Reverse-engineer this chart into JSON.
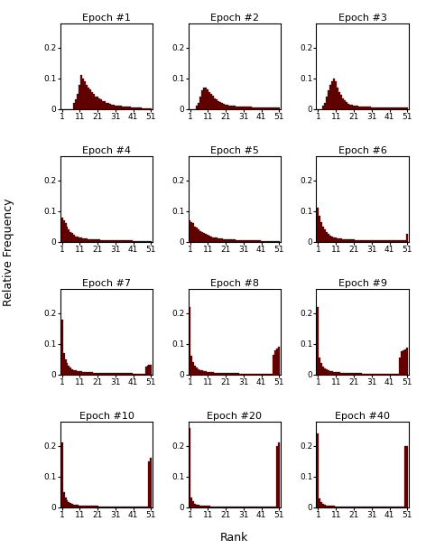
{
  "epochs": [
    "Epoch #1",
    "Epoch #2",
    "Epoch #3",
    "Epoch #4",
    "Epoch #5",
    "Epoch #6",
    "Epoch #7",
    "Epoch #8",
    "Epoch #9",
    "Epoch #10",
    "Epoch #20",
    "Epoch #40"
  ],
  "n_bins": 51,
  "bar_color": "#6B0000",
  "bar_edgecolor": "#3A0000",
  "ylabel": "Relative Frequency",
  "xlabel": "Rank",
  "xtick_vals": [
    1,
    11,
    21,
    31,
    41,
    51
  ],
  "ytick_vals": [
    0,
    0.1,
    0.2
  ],
  "ylim": [
    0,
    0.28
  ],
  "xlim": [
    0,
    52
  ],
  "title_fontsize": 8,
  "tick_fontsize": 6.5,
  "label_fontsize": 9,
  "figsize": [
    4.72,
    6.08
  ],
  "dpi": 100,
  "hist_data": {
    "Epoch #1": [
      0,
      0,
      0,
      0,
      0,
      0,
      0,
      0.02,
      0.03,
      0.05,
      0.08,
      0.11,
      0.1,
      0.09,
      0.08,
      0.07,
      0.065,
      0.055,
      0.05,
      0.04,
      0.04,
      0.035,
      0.03,
      0.025,
      0.025,
      0.02,
      0.02,
      0.018,
      0.015,
      0.013,
      0.012,
      0.01,
      0.01,
      0.01,
      0.009,
      0.008,
      0.008,
      0.007,
      0.007,
      0.006,
      0.006,
      0.005,
      0.005,
      0.004,
      0.004,
      0.003,
      0.003,
      0.002,
      0.001,
      0.001,
      0.001
    ],
    "Epoch #2": [
      0,
      0,
      0,
      0,
      0.01,
      0.02,
      0.04,
      0.06,
      0.07,
      0.07,
      0.065,
      0.055,
      0.048,
      0.042,
      0.035,
      0.03,
      0.025,
      0.022,
      0.02,
      0.017,
      0.015,
      0.013,
      0.012,
      0.011,
      0.01,
      0.01,
      0.009,
      0.009,
      0.008,
      0.008,
      0.008,
      0.007,
      0.007,
      0.007,
      0.007,
      0.006,
      0.006,
      0.006,
      0.006,
      0.005,
      0.005,
      0.005,
      0.005,
      0.005,
      0.005,
      0.005,
      0.005,
      0.005,
      0.005,
      0.005,
      0.005
    ],
    "Epoch #3": [
      0,
      0,
      0,
      0.01,
      0.02,
      0.04,
      0.06,
      0.08,
      0.09,
      0.1,
      0.09,
      0.07,
      0.055,
      0.045,
      0.035,
      0.028,
      0.022,
      0.018,
      0.015,
      0.013,
      0.012,
      0.011,
      0.01,
      0.009,
      0.009,
      0.008,
      0.008,
      0.007,
      0.007,
      0.007,
      0.006,
      0.006,
      0.006,
      0.006,
      0.005,
      0.005,
      0.005,
      0.005,
      0.005,
      0.005,
      0.005,
      0.005,
      0.005,
      0.005,
      0.005,
      0.005,
      0.005,
      0.005,
      0.005,
      0.005,
      0.005
    ],
    "Epoch #4": [
      0.08,
      0.07,
      0.06,
      0.05,
      0.04,
      0.032,
      0.027,
      0.022,
      0.018,
      0.016,
      0.014,
      0.013,
      0.012,
      0.011,
      0.01,
      0.009,
      0.009,
      0.008,
      0.008,
      0.007,
      0.007,
      0.007,
      0.006,
      0.006,
      0.006,
      0.006,
      0.005,
      0.005,
      0.005,
      0.005,
      0.005,
      0.005,
      0.004,
      0.004,
      0.004,
      0.004,
      0.004,
      0.004,
      0.004,
      0.004,
      0.003,
      0.003,
      0.003,
      0.003,
      0.003,
      0.003,
      0.003,
      0.003,
      0.003,
      0.003,
      0.003
    ],
    "Epoch #5": [
      0.07,
      0.065,
      0.06,
      0.05,
      0.045,
      0.04,
      0.035,
      0.03,
      0.027,
      0.025,
      0.022,
      0.02,
      0.018,
      0.015,
      0.014,
      0.013,
      0.012,
      0.011,
      0.01,
      0.009,
      0.009,
      0.008,
      0.008,
      0.007,
      0.007,
      0.007,
      0.006,
      0.006,
      0.006,
      0.005,
      0.005,
      0.005,
      0.005,
      0.005,
      0.004,
      0.004,
      0.004,
      0.004,
      0.004,
      0.004,
      0.003,
      0.003,
      0.003,
      0.003,
      0.003,
      0.003,
      0.003,
      0.003,
      0.003,
      0.003,
      0.003
    ],
    "Epoch #6": [
      0.11,
      0.085,
      0.065,
      0.05,
      0.04,
      0.032,
      0.025,
      0.02,
      0.017,
      0.015,
      0.013,
      0.012,
      0.011,
      0.01,
      0.009,
      0.009,
      0.008,
      0.008,
      0.007,
      0.007,
      0.007,
      0.006,
      0.006,
      0.006,
      0.005,
      0.005,
      0.005,
      0.005,
      0.005,
      0.005,
      0.004,
      0.004,
      0.004,
      0.004,
      0.004,
      0.004,
      0.004,
      0.004,
      0.004,
      0.004,
      0.004,
      0.004,
      0.004,
      0.004,
      0.004,
      0.004,
      0.004,
      0.004,
      0.004,
      0.004,
      0.025
    ],
    "Epoch #7": [
      0.18,
      0.07,
      0.05,
      0.038,
      0.028,
      0.022,
      0.018,
      0.015,
      0.013,
      0.012,
      0.011,
      0.01,
      0.009,
      0.008,
      0.008,
      0.007,
      0.007,
      0.007,
      0.006,
      0.006,
      0.006,
      0.006,
      0.005,
      0.005,
      0.005,
      0.005,
      0.005,
      0.005,
      0.004,
      0.004,
      0.004,
      0.004,
      0.004,
      0.004,
      0.004,
      0.004,
      0.004,
      0.004,
      0.004,
      0.004,
      0.003,
      0.003,
      0.003,
      0.003,
      0.003,
      0.003,
      0.003,
      0.025,
      0.028,
      0.03,
      0.032
    ],
    "Epoch #8": [
      0.22,
      0.06,
      0.04,
      0.028,
      0.022,
      0.018,
      0.015,
      0.013,
      0.011,
      0.01,
      0.009,
      0.008,
      0.007,
      0.007,
      0.006,
      0.006,
      0.005,
      0.005,
      0.005,
      0.005,
      0.005,
      0.004,
      0.004,
      0.004,
      0.004,
      0.004,
      0.004,
      0.004,
      0.003,
      0.003,
      0.003,
      0.003,
      0.003,
      0.003,
      0.003,
      0.003,
      0.003,
      0.003,
      0.003,
      0.003,
      0.003,
      0.003,
      0.003,
      0.003,
      0.003,
      0.003,
      0.003,
      0.065,
      0.08,
      0.085,
      0.09
    ],
    "Epoch #9": [
      0.22,
      0.055,
      0.038,
      0.026,
      0.02,
      0.016,
      0.013,
      0.011,
      0.01,
      0.009,
      0.008,
      0.007,
      0.007,
      0.006,
      0.006,
      0.005,
      0.005,
      0.005,
      0.005,
      0.004,
      0.004,
      0.004,
      0.004,
      0.004,
      0.004,
      0.003,
      0.003,
      0.003,
      0.003,
      0.003,
      0.003,
      0.003,
      0.003,
      0.003,
      0.003,
      0.003,
      0.003,
      0.003,
      0.003,
      0.003,
      0.003,
      0.003,
      0.003,
      0.003,
      0.003,
      0.003,
      0.055,
      0.075,
      0.08,
      0.082,
      0.088
    ],
    "Epoch #10": [
      0.21,
      0.05,
      0.03,
      0.022,
      0.016,
      0.013,
      0.011,
      0.009,
      0.008,
      0.007,
      0.006,
      0.006,
      0.005,
      0.005,
      0.005,
      0.005,
      0.004,
      0.004,
      0.004,
      0.004,
      0.004,
      0.003,
      0.003,
      0.003,
      0.003,
      0.003,
      0.003,
      0.003,
      0.003,
      0.003,
      0.003,
      0.003,
      0.003,
      0.003,
      0.003,
      0.003,
      0.003,
      0.003,
      0.003,
      0.003,
      0.003,
      0.003,
      0.003,
      0.003,
      0.003,
      0.003,
      0.003,
      0.003,
      0.003,
      0.15,
      0.16
    ],
    "Epoch #20": [
      0.26,
      0.03,
      0.018,
      0.012,
      0.009,
      0.007,
      0.006,
      0.005,
      0.005,
      0.004,
      0.004,
      0.004,
      0.003,
      0.003,
      0.003,
      0.003,
      0.003,
      0.003,
      0.003,
      0.003,
      0.003,
      0.003,
      0.002,
      0.002,
      0.002,
      0.002,
      0.002,
      0.002,
      0.002,
      0.002,
      0.002,
      0.002,
      0.002,
      0.002,
      0.002,
      0.002,
      0.002,
      0.002,
      0.002,
      0.002,
      0.002,
      0.002,
      0.002,
      0.002,
      0.002,
      0.002,
      0.002,
      0.002,
      0.002,
      0.2,
      0.21
    ],
    "Epoch #40": [
      0.24,
      0.028,
      0.016,
      0.011,
      0.008,
      0.006,
      0.005,
      0.005,
      0.004,
      0.004,
      0.003,
      0.003,
      0.003,
      0.003,
      0.003,
      0.002,
      0.002,
      0.002,
      0.002,
      0.002,
      0.002,
      0.002,
      0.002,
      0.002,
      0.002,
      0.002,
      0.002,
      0.002,
      0.002,
      0.002,
      0.002,
      0.002,
      0.002,
      0.002,
      0.002,
      0.002,
      0.002,
      0.002,
      0.002,
      0.002,
      0.002,
      0.002,
      0.002,
      0.002,
      0.002,
      0.002,
      0.002,
      0.002,
      0.002,
      0.2,
      0.2
    ]
  }
}
